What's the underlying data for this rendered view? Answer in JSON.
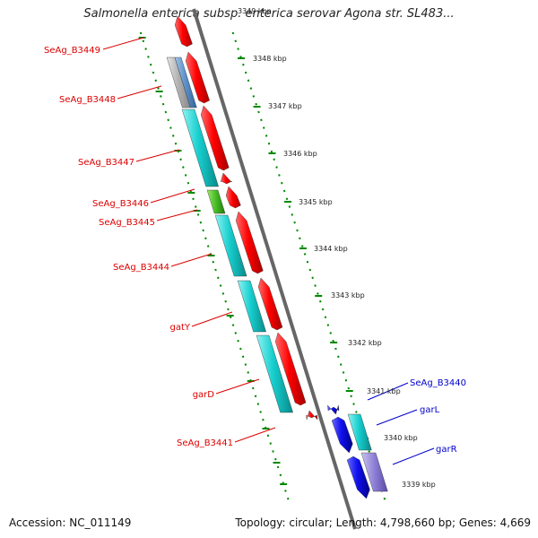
{
  "title": "Salmonella enterica subsp. enterica serovar Agona str. SL483...",
  "footer": {
    "accession": "Accession: NC_011149",
    "topology": "Topology: circular; Length: 4,798,660 bp; Genes: 4,669"
  },
  "colors": {
    "forward_label": "#dd0000",
    "reverse_label": "#0000cc",
    "backbone": "#666666",
    "tick": "#008800"
  },
  "kbp_labels": [
    "3349 kbp",
    "3348 kbp",
    "3347 kbp",
    "3346 kbp",
    "3345 kbp",
    "3344 kbp",
    "3343 kbp",
    "3342 kbp",
    "3341 kbp",
    "3340 kbp",
    "3339 kbp"
  ],
  "left_labels": [
    "SeAg_B3449",
    "SeAg_B3448",
    "SeAg_B3447",
    "SeAg_B3446",
    "SeAg_B3445",
    "SeAg_B3444",
    "gatY",
    "garD",
    "SeAg_B3441"
  ],
  "right_labels": [
    "SeAg_B3440",
    "garL",
    "garR"
  ]
}
